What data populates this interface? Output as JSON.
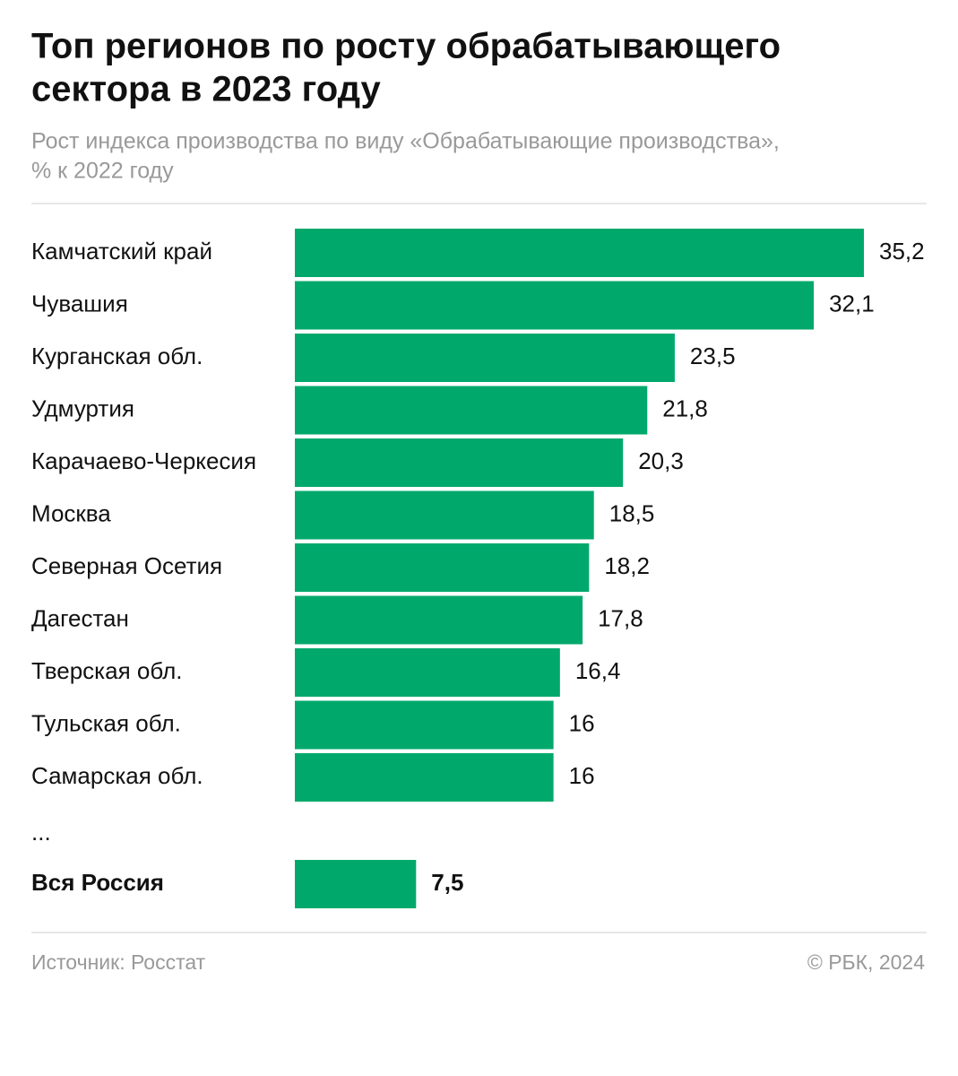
{
  "chart_data": {
    "type": "hbar",
    "title": [
      "Топ регионов по росту обрабатывающего",
      "сектора в 2023 году"
    ],
    "subtitle": [
      "Рост индекса производства по виду «Обрабатывающие производства»,",
      "% к 2022 году"
    ],
    "categories": [
      "Камчатский край",
      "Чувашия",
      "Курганская обл.",
      "Удмуртия",
      "Карачаево-Черкесия",
      "Москва",
      "Северная Осетия",
      "Дагестан",
      "Тверская обл.",
      "Тульская обл.",
      "Самарская обл.",
      "Вся Россия"
    ],
    "values": [
      35.2,
      32.1,
      23.5,
      21.8,
      20.3,
      18.5,
      18.2,
      17.8,
      16.4,
      16,
      16,
      7.5
    ],
    "value_labels": [
      "35,2",
      "32,1",
      "23,5",
      "21,8",
      "20,3",
      "18,5",
      "18,2",
      "17,8",
      "16,4",
      "16",
      "16",
      "7,5"
    ],
    "gap_label": "...",
    "color": "#00a96b",
    "source": "Источник: Росстат",
    "copyright": "© РБК, 2024"
  }
}
